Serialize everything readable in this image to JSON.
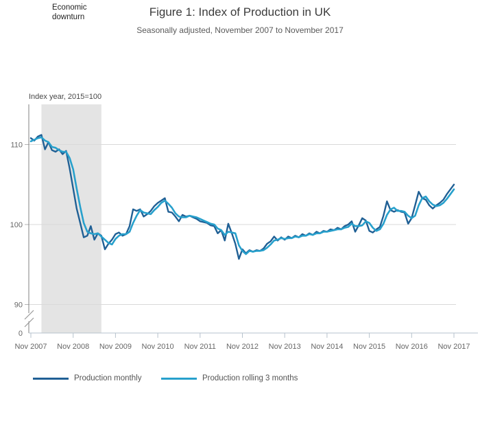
{
  "chart_data": {
    "type": "line",
    "title": "Figure 1: Index of Production in UK",
    "subtitle": "Seasonally adjusted, November 2007 to November 2017",
    "axis_label": "Index year, 2015=100",
    "grid": "horizontal",
    "legend_position": "bottom",
    "y_ticks": [
      110,
      100,
      90,
      0
    ],
    "y_axis_break": true,
    "y_range_shown": [
      88,
      113.5
    ],
    "x_frequency": "monthly",
    "x_start": "Nov 2007",
    "x_end": "Nov 2017",
    "x_tick_labels": [
      "Nov 2007",
      "Nov 2008",
      "Nov 2009",
      "Nov 2010",
      "Nov 2011",
      "Nov 2012",
      "Nov 2013",
      "Nov 2014",
      "Nov 2015",
      "Nov 2016",
      "Nov 2017"
    ],
    "recession_band": {
      "label": "Economic downturn",
      "start": "Feb 2008",
      "end": "Jul 2009",
      "color": "#e4e4e4"
    },
    "series": [
      {
        "name": "Production monthly",
        "color": "#206095",
        "values": [
          110.8,
          110.5,
          111.0,
          111.2,
          109.4,
          110.3,
          109.3,
          109.1,
          109.4,
          108.8,
          109.2,
          107.0,
          104.5,
          102.0,
          100.2,
          98.4,
          98.6,
          99.8,
          98.1,
          98.9,
          98.6,
          96.9,
          97.6,
          98.1,
          98.8,
          99.0,
          98.6,
          98.8,
          99.8,
          101.9,
          101.7,
          101.9,
          101.0,
          101.3,
          101.7,
          102.3,
          102.7,
          103.0,
          103.3,
          101.6,
          101.5,
          101.0,
          100.4,
          101.2,
          101.0,
          101.1,
          100.9,
          100.7,
          100.4,
          100.3,
          100.2,
          99.9,
          99.8,
          98.9,
          99.3,
          98.0,
          100.1,
          98.9,
          97.6,
          95.7,
          96.9,
          96.4,
          96.8,
          96.6,
          96.8,
          96.7,
          97.0,
          97.6,
          97.9,
          98.5,
          98.0,
          98.4,
          98.1,
          98.5,
          98.3,
          98.6,
          98.4,
          98.8,
          98.6,
          98.9,
          98.7,
          99.1,
          98.9,
          99.2,
          99.1,
          99.4,
          99.3,
          99.6,
          99.4,
          99.8,
          100.0,
          100.4,
          99.1,
          99.9,
          100.8,
          100.5,
          99.2,
          99.0,
          99.4,
          99.7,
          101.1,
          102.9,
          101.8,
          101.6,
          101.8,
          101.6,
          101.5,
          100.1,
          100.8,
          102.4,
          104.1,
          103.3,
          103.1,
          102.4,
          102.0,
          102.4,
          102.7,
          103.1,
          103.8,
          104.4,
          105.0
        ]
      },
      {
        "name": "Production rolling 3 months",
        "color": "#27A0CC",
        "values": [
          110.4,
          110.6,
          110.8,
          110.9,
          110.5,
          110.3,
          109.7,
          109.6,
          109.3,
          109.1,
          109.1,
          108.3,
          106.9,
          104.5,
          102.2,
          100.2,
          99.1,
          98.9,
          98.8,
          98.9,
          98.5,
          98.1,
          97.7,
          97.5,
          98.2,
          98.6,
          98.8,
          98.8,
          99.1,
          100.2,
          101.1,
          101.8,
          101.5,
          101.4,
          101.3,
          101.8,
          102.2,
          102.7,
          103.0,
          102.6,
          102.1,
          101.4,
          101.0,
          100.9,
          100.9,
          101.1,
          101.0,
          100.9,
          100.7,
          100.5,
          100.3,
          100.1,
          100.0,
          99.5,
          99.3,
          98.7,
          99.1,
          99.0,
          98.9,
          97.4,
          96.7,
          96.3,
          96.7,
          96.6,
          96.7,
          96.7,
          96.8,
          97.1,
          97.5,
          98.0,
          98.1,
          98.3,
          98.2,
          98.3,
          98.3,
          98.5,
          98.4,
          98.6,
          98.6,
          98.8,
          98.7,
          98.9,
          98.9,
          99.1,
          99.1,
          99.2,
          99.3,
          99.4,
          99.4,
          99.6,
          99.7,
          100.1,
          99.8,
          99.8,
          99.9,
          100.4,
          100.2,
          99.6,
          99.2,
          99.4,
          100.1,
          101.2,
          101.9,
          102.1,
          101.7,
          101.7,
          101.6,
          101.1,
          100.8,
          101.1,
          102.4,
          103.3,
          103.5,
          102.9,
          102.5,
          102.3,
          102.4,
          102.7,
          103.2,
          103.8,
          104.4
        ]
      }
    ]
  }
}
